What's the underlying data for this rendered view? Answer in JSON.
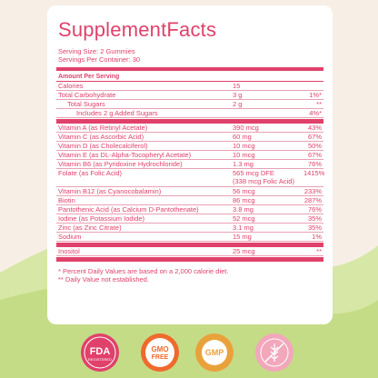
{
  "panel": {
    "title": "SupplementFacts",
    "serving_size": "Serving Size: 2 Gummies",
    "servings_per_container": "Servings Per Container: 30",
    "amount_header": "Amount Per Serving",
    "rows": [
      {
        "name": "Calories",
        "amount": "15",
        "dv": ""
      },
      {
        "name": "Total Carbohydrate",
        "amount": "3 g",
        "dv": "1%*"
      },
      {
        "name": "Total Sugars",
        "amount": "2 g",
        "dv": "**"
      },
      {
        "name": "Includes 2 g Added Sugars",
        "amount": "",
        "dv": "4%*"
      },
      {
        "name": "Vitamin A (as Retinyl Acetate)",
        "amount": "390 mcg",
        "dv": "43%"
      },
      {
        "name": "Vitamin C (as Ascorbic Acid)",
        "amount": "60 mg",
        "dv": "67%"
      },
      {
        "name": "Vitamin D (as Cholecalciferol)",
        "amount": "10 mcg",
        "dv": "50%"
      },
      {
        "name": "Vitamin E (as DL-Alpha-Tocopheryl Acetate)",
        "amount": "10 mcg",
        "dv": "67%"
      },
      {
        "name": "Vitamin B6 (as Pyridoxine Hydrochloride)",
        "amount": "1.3 mg",
        "dv": "76%"
      },
      {
        "name": "Folate (as Folic Acid)",
        "amount": "565 mcg DFE",
        "amount2": "(338 mcg Folic Acid)",
        "dv": "1415%"
      },
      {
        "name": "Vitamin B12 (as Cyanocobalamin)",
        "amount": "56 mcg",
        "dv": "233%"
      },
      {
        "name": "Biotin",
        "amount": "86 mcg",
        "dv": "287%"
      },
      {
        "name": "Pantothenic Acid (as Calcium D-Pantothenate)",
        "amount": "3.8 mg",
        "dv": "76%"
      },
      {
        "name": "Iodine (as Potassium Iodide)",
        "amount": "52 mcg",
        "dv": "35%"
      },
      {
        "name": "Zinc (as Zinc Citrate)",
        "amount": "3.1 mg",
        "dv": "35%"
      },
      {
        "name": "Sodium",
        "amount": "15 mg",
        "dv": "1%"
      },
      {
        "name": "Inositol",
        "amount": "25 mcg",
        "dv": "**"
      }
    ],
    "footnote1": "* Percent Daily Values are based on a 2,000 calorie diet.",
    "footnote2": "** Daily Value not established."
  },
  "badges": {
    "fda": {
      "line1": "FDA",
      "line2": "REGISTERED"
    },
    "gmo": {
      "line1": "GMO",
      "line2": "FREE"
    },
    "gmp": {
      "line1": "GMP",
      "ring": "GOOD MANUFACTURING PRACTICE"
    },
    "gluten": {
      "top": "GLUTEN FREE",
      "bottom": "GLUTEN FREE"
    }
  },
  "colors": {
    "accent": "#e0416b",
    "background": "#f7efe6",
    "wave": "#cfe29a",
    "gmo_orange": "#ef6a2c",
    "gmp_gold": "#e9a23b",
    "gluten_pink": "#f2a7bb"
  }
}
